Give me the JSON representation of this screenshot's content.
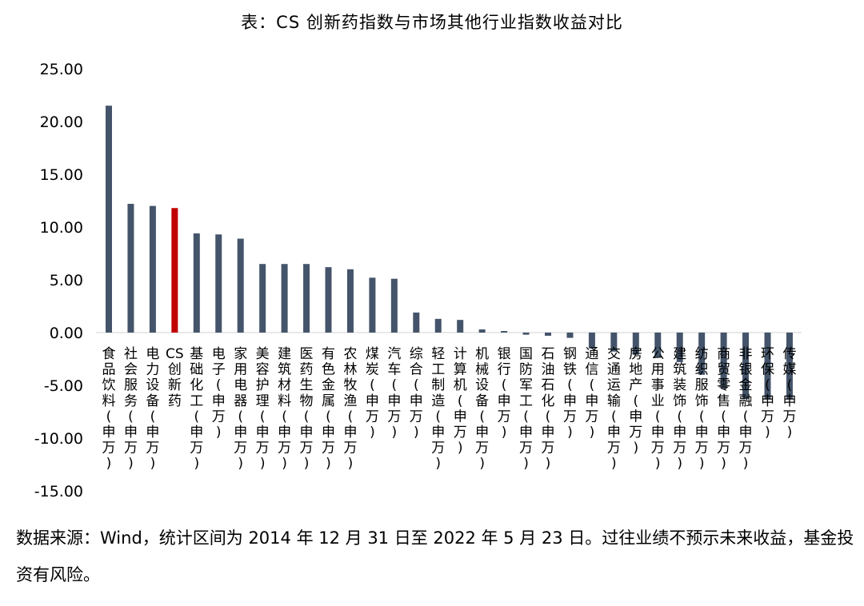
{
  "title": "表：CS 创新药指数与市场其他行业指数收益对比",
  "source": "数据来源：Wind，统计区间为 2014 年 12 月 31 日至 2022 年 5 月 23 日。过往业绩不预示未来收益，基金投资有风险。",
  "chart_data": {
    "type": "bar",
    "title": "表：CS 创新药指数与市场其他行业指数收益对比",
    "xlabel": "",
    "ylabel": "",
    "ylim": [
      -15,
      25
    ],
    "yticks": [
      "25.00",
      "20.00",
      "15.00",
      "10.00",
      "5.00",
      "0.00",
      "-5.00",
      "-10.00",
      "-15.00"
    ],
    "grid": false,
    "legend": "none",
    "bar_color": "#44546A",
    "highlight_color": "#C00000",
    "highlight_category": "CS创新药",
    "categories": [
      "食品饮料(申万)",
      "社会服务(申万)",
      "电力设备(申万)",
      "CS创新药",
      "基础化工(申万)",
      "电子(申万)",
      "家用电器(申万)",
      "美容护理(申万)",
      "建筑材料(申万)",
      "医药生物(申万)",
      "有色金属(申万)",
      "农林牧渔(申万)",
      "煤炭(申万)",
      "汽车(申万)",
      "综合(申万)",
      "轻工制造(申万)",
      "计算机(申万)",
      "机械设备(申万)",
      "银行(申万)",
      "国防军工(申万)",
      "石油石化(申万)",
      "钢铁(申万)",
      "通信(申万)",
      "交通运输(申万)",
      "房地产(申万)",
      "公用事业(申万)",
      "建筑装饰(申万)",
      "纺织服饰(申万)",
      "商贸零售(申万)",
      "非银金融(申万)",
      "环保(申万)",
      "传媒(申万)"
    ],
    "values": [
      21.5,
      12.2,
      12.0,
      11.8,
      9.4,
      9.3,
      8.9,
      6.5,
      6.5,
      6.5,
      6.2,
      6.0,
      5.2,
      5.1,
      1.9,
      1.3,
      1.2,
      0.3,
      0.15,
      -0.2,
      -0.3,
      -0.5,
      -1.5,
      -1.8,
      -2.1,
      -2.3,
      -2.8,
      -4.0,
      -5.3,
      -6.3,
      -6.3,
      -6.3
    ]
  }
}
